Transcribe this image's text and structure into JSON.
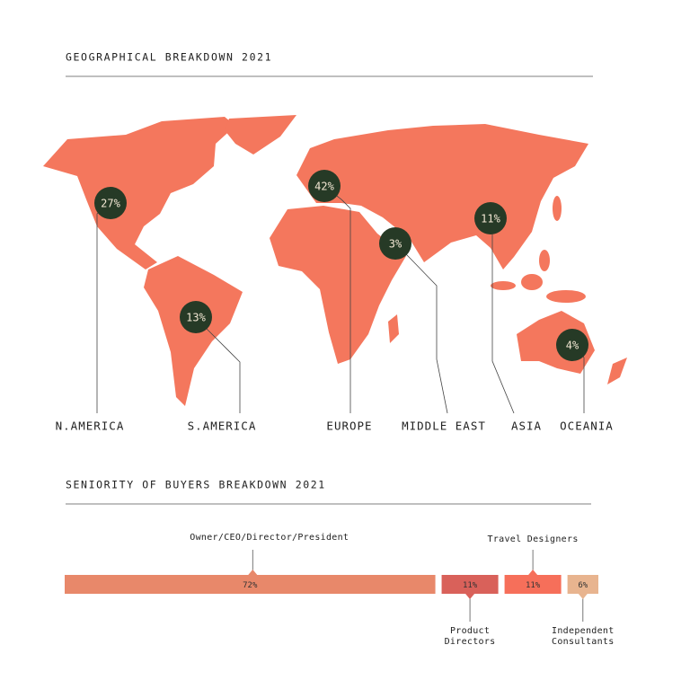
{
  "chart_data": [
    {
      "type": "map",
      "title": "GEOGRAPHICAL BREAKDOWN 2021",
      "categories": [
        "N.AMERICA",
        "S.AMERICA",
        "EUROPE",
        "MIDDLE EAST",
        "ASIA",
        "OCEANIA"
      ],
      "values": [
        27,
        13,
        42,
        3,
        11,
        4
      ],
      "value_labels": [
        "27%",
        "13%",
        "42%",
        "3%",
        "11%",
        "4%"
      ],
      "color": "#f4775d",
      "marker_color": "#263a26"
    },
    {
      "type": "bar",
      "title": "SENIORITY OF BUYERS BREAKDOWN 2021",
      "stacked": true,
      "orientation": "horizontal",
      "categories": [
        "Owner/CEO/Director/President",
        "Product Directors",
        "Travel Designers",
        "Independent Consultants"
      ],
      "values": [
        72,
        11,
        11,
        6
      ],
      "value_labels": [
        "72%",
        "11%",
        "11%",
        "6%"
      ],
      "colors": [
        "#e8886a",
        "#d9615a",
        "#f66f5a",
        "#e8b48f"
      ]
    }
  ]
}
